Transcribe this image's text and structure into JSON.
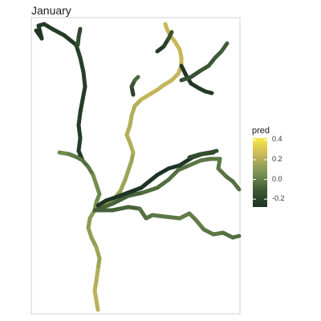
{
  "chart_data": {
    "type": "line",
    "title": "January",
    "xlabel": "",
    "ylabel": "",
    "legend": {
      "title": "pred",
      "position": "right",
      "ticks": [
        0.4,
        0.2,
        0.0,
        -0.2
      ],
      "tick_labels": [
        "0.4",
        "0.2",
        "0.0",
        "-0.2"
      ],
      "range": [
        -0.28,
        0.42
      ],
      "colors": [
        "#1e3324",
        "#3e5a36",
        "#7c9553",
        "#c6b65a",
        "#fbe94a"
      ]
    },
    "grid": false,
    "series": [
      {
        "values": [
          -0.26,
          -0.26,
          -0.25,
          -0.25,
          -0.24,
          -0.25
        ]
      },
      {
        "values": [
          -0.23,
          -0.23,
          -0.24,
          -0.24,
          -0.24,
          -0.25
        ]
      },
      {
        "values": [
          -0.19,
          -0.18,
          -0.17,
          -0.17,
          -0.18,
          -0.19
        ]
      },
      {
        "values": [
          -0.05,
          -0.02,
          0.02,
          0.05,
          0.06,
          0.04,
          0.03,
          0.04,
          0.06,
          0.08
        ]
      },
      {
        "values": [
          0.04,
          0.02,
          0.0,
          -0.02,
          -0.03,
          -0.05
        ]
      },
      {
        "values": [
          0.1,
          0.12,
          0.15,
          0.2,
          0.22
        ]
      },
      {
        "values": [
          0.15,
          0.2,
          0.24,
          0.25
        ]
      },
      {
        "values": [
          -0.26,
          -0.26,
          -0.25,
          -0.25
        ]
      },
      {
        "values": [
          -0.2,
          -0.18,
          -0.14,
          -0.1,
          -0.06,
          -0.04
        ]
      },
      {
        "values": [
          -0.25,
          -0.24,
          -0.22,
          -0.18,
          -0.14,
          -0.12
        ]
      },
      {
        "values": [
          -0.15,
          -0.12,
          -0.1
        ]
      },
      {
        "values": [
          -0.08,
          -0.04,
          -0.02,
          0.0,
          -0.02,
          -0.04
        ]
      },
      {
        "values": [
          -0.08,
          -0.05,
          -0.04,
          -0.02,
          -0.02,
          -0.04
        ]
      },
      {
        "values": [
          -0.28,
          -0.28,
          -0.27
        ]
      },
      {
        "values": [
          -0.17,
          -0.16,
          -0.16
        ]
      }
    ]
  }
}
